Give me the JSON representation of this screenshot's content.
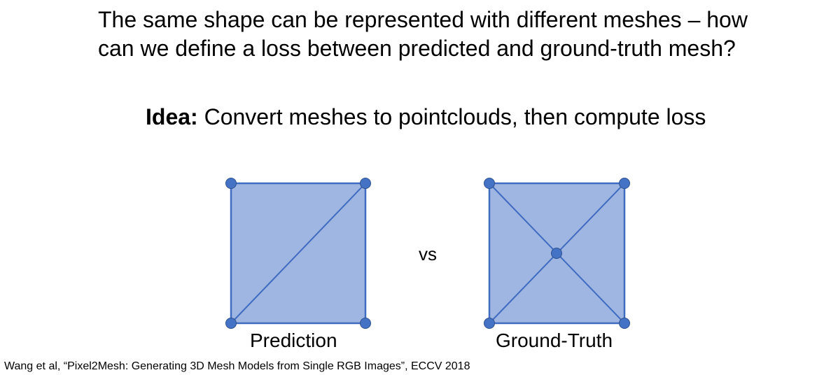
{
  "slide": {
    "heading_line1": "The same shape can be represented with different meshes – how",
    "heading_line2": "can we define a loss between predicted and ground-truth mesh?",
    "idea_label": "Idea:",
    "idea_text": " Convert meshes to pointclouds, then compute loss",
    "vs_text": "vs",
    "citation": "Wang et al, “Pixel2Mesh: Generating 3D Mesh Models from Single RGB Images”, ECCV 2018"
  },
  "meshes": [
    {
      "label": "Prediction",
      "vertices": [
        "top-left",
        "top-right",
        "bottom-left",
        "bottom-right"
      ],
      "edges": [
        "diagonal bottom-left to top-right"
      ]
    },
    {
      "label": "Ground-Truth",
      "vertices": [
        "top-left",
        "top-right",
        "bottom-left",
        "bottom-right",
        "center"
      ],
      "edges": [
        "diagonal top-left to bottom-right",
        "diagonal top-right to bottom-left"
      ]
    }
  ],
  "colors": {
    "fill": "#a0b6e2",
    "stroke": "#3f6cc0",
    "vertex": "#4472c4"
  }
}
